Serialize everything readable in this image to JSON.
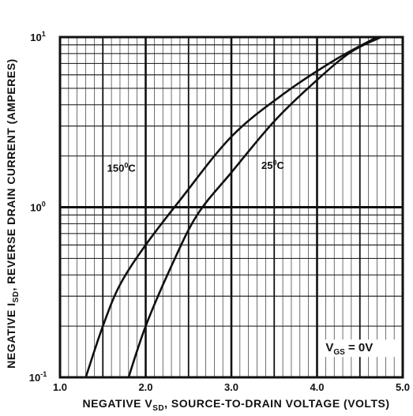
{
  "chart_data": {
    "type": "line",
    "title": "",
    "xlabel_parts": [
      "NEGATIVE V",
      "SD",
      ", SOURCE-TO-DRAIN VOLTAGE (VOLTS)"
    ],
    "ylabel_parts": [
      "NEGATIVE I",
      "SD",
      ", REVERSE DRAIN CURRENT (AMPERES)"
    ],
    "x_ticks": [
      "1.0",
      "2.0",
      "3.0",
      "4.0",
      "5.0"
    ],
    "y_ticks": [
      {
        "base": "10",
        "exp": "-1"
      },
      {
        "base": "10",
        "exp": "0"
      },
      {
        "base": "10",
        "exp": "1"
      }
    ],
    "xlim": [
      1.0,
      5.0
    ],
    "ylim": [
      0.1,
      10
    ],
    "yscale": "log",
    "grid": true,
    "annotation": {
      "main": "V",
      "sub": "GS",
      "rest": " = 0V"
    },
    "series": [
      {
        "name": "150°C",
        "label_parts": [
          "150",
          "0",
          "C"
        ],
        "x": [
          1.3,
          1.5,
          1.7,
          2.0,
          2.4,
          3.0,
          3.6,
          4.2,
          4.7
        ],
        "y": [
          0.1,
          0.2,
          0.35,
          0.6,
          1.1,
          2.6,
          4.6,
          7.3,
          10.0
        ]
      },
      {
        "name": "25°C",
        "label_parts": [
          "25",
          "0",
          "C"
        ],
        "x": [
          1.8,
          2.0,
          2.3,
          2.6,
          3.0,
          3.5,
          4.0,
          4.4,
          4.75
        ],
        "y": [
          0.1,
          0.2,
          0.45,
          0.9,
          1.6,
          3.2,
          5.6,
          8.2,
          10.0
        ]
      }
    ]
  }
}
